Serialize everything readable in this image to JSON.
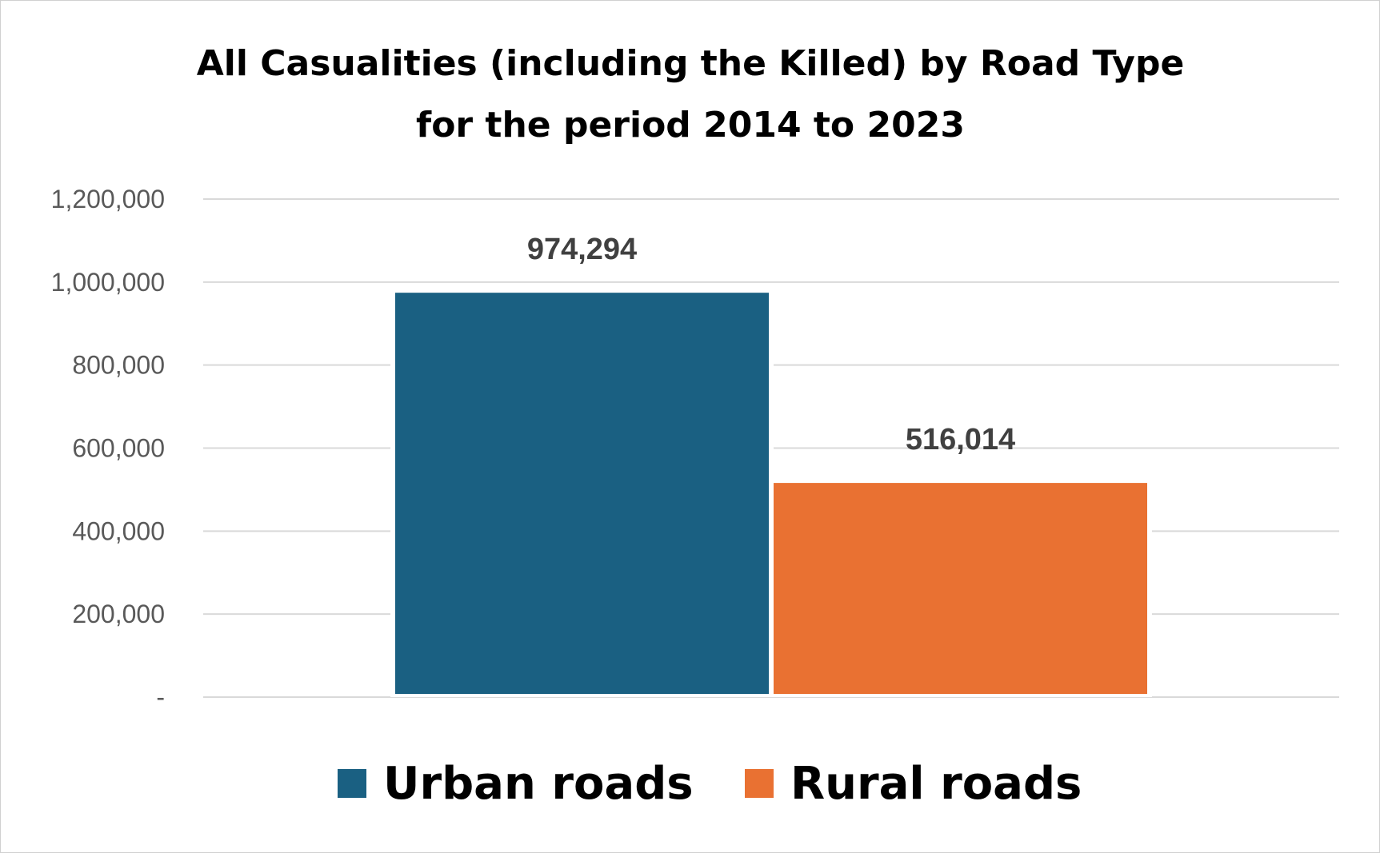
{
  "chart_data": {
    "type": "bar",
    "title_lines": [
      "All Casualities (including the Killed) by Road Type",
      "for the period 2014 to 2023"
    ],
    "categories": [
      ""
    ],
    "series": [
      {
        "name": "Urban roads",
        "values": [
          974294
        ],
        "color": "#1a6082",
        "label": "974,294"
      },
      {
        "name": "Rural roads",
        "values": [
          516014
        ],
        "color": "#e97132",
        "label": "516,014"
      }
    ],
    "y_ticks": [
      {
        "value": 0,
        "label": "-"
      },
      {
        "value": 200000,
        "label": "200,000"
      },
      {
        "value": 400000,
        "label": "400,000"
      },
      {
        "value": 600000,
        "label": "600,000"
      },
      {
        "value": 800000,
        "label": "800,000"
      },
      {
        "value": 1000000,
        "label": "1,000,000"
      },
      {
        "value": 1200000,
        "label": "1,200,000"
      }
    ],
    "ylim": [
      0,
      1200000
    ],
    "grid": true,
    "legend_position": "bottom",
    "xlabel": "",
    "ylabel": ""
  }
}
